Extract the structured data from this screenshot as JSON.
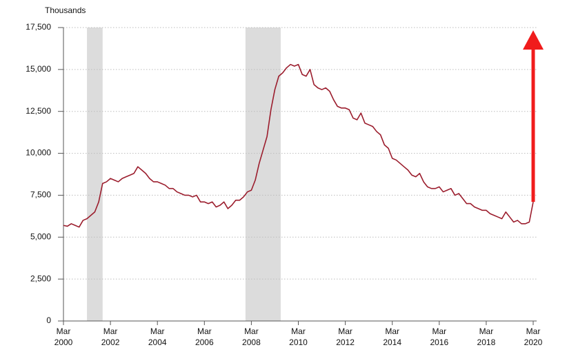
{
  "chart_data": {
    "type": "line",
    "y_label": "Thousands",
    "x": [
      "2000-03",
      "2000-05",
      "2000-07",
      "2000-09",
      "2000-11",
      "2001-01",
      "2001-03",
      "2001-05",
      "2001-07",
      "2001-09",
      "2001-11",
      "2002-01",
      "2002-03",
      "2002-05",
      "2002-07",
      "2002-09",
      "2002-11",
      "2003-01",
      "2003-03",
      "2003-05",
      "2003-07",
      "2003-09",
      "2003-11",
      "2004-01",
      "2004-03",
      "2004-05",
      "2004-07",
      "2004-09",
      "2004-11",
      "2005-01",
      "2005-03",
      "2005-05",
      "2005-07",
      "2005-09",
      "2005-11",
      "2006-01",
      "2006-03",
      "2006-05",
      "2006-07",
      "2006-09",
      "2006-11",
      "2007-01",
      "2007-03",
      "2007-05",
      "2007-07",
      "2007-09",
      "2007-11",
      "2008-01",
      "2008-03",
      "2008-05",
      "2008-07",
      "2008-09",
      "2008-11",
      "2009-01",
      "2009-03",
      "2009-05",
      "2009-07",
      "2009-09",
      "2009-11",
      "2010-01",
      "2010-03",
      "2010-05",
      "2010-07",
      "2010-09",
      "2010-11",
      "2011-01",
      "2011-03",
      "2011-05",
      "2011-07",
      "2011-09",
      "2011-11",
      "2012-01",
      "2012-03",
      "2012-05",
      "2012-07",
      "2012-09",
      "2012-11",
      "2013-01",
      "2013-03",
      "2013-05",
      "2013-07",
      "2013-09",
      "2013-11",
      "2014-01",
      "2014-03",
      "2014-05",
      "2014-07",
      "2014-09",
      "2014-11",
      "2015-01",
      "2015-03",
      "2015-05",
      "2015-07",
      "2015-09",
      "2015-11",
      "2016-01",
      "2016-03",
      "2016-05",
      "2016-07",
      "2016-09",
      "2016-11",
      "2017-01",
      "2017-03",
      "2017-05",
      "2017-07",
      "2017-09",
      "2017-11",
      "2018-01",
      "2018-03",
      "2018-05",
      "2018-07",
      "2018-09",
      "2018-11",
      "2019-01",
      "2019-03",
      "2019-05",
      "2019-07",
      "2019-09",
      "2019-11",
      "2020-01",
      "2020-03"
    ],
    "series": [
      {
        "color": "#9b1c2c",
        "values": [
          5700,
          5650,
          5800,
          5700,
          5600,
          6000,
          6100,
          6300,
          6500,
          7100,
          8200,
          8300,
          8500,
          8400,
          8300,
          8500,
          8600,
          8700,
          8800,
          9200,
          9000,
          8800,
          8500,
          8300,
          8300,
          8200,
          8100,
          7900,
          7900,
          7700,
          7600,
          7500,
          7500,
          7400,
          7500,
          7100,
          7100,
          7000,
          7100,
          6800,
          6900,
          7100,
          6700,
          6900,
          7200,
          7200,
          7400,
          7700,
          7800,
          8400,
          9400,
          10200,
          11000,
          12600,
          13800,
          14600,
          14800,
          15100,
          15300,
          15200,
          15300,
          14700,
          14600,
          15000,
          14100,
          13900,
          13800,
          13900,
          13700,
          13200,
          12800,
          12700,
          12700,
          12600,
          12100,
          12000,
          12400,
          11800,
          11700,
          11600,
          11300,
          11100,
          10500,
          10300,
          9700,
          9600,
          9400,
          9200,
          9000,
          8700,
          8600,
          8800,
          8300,
          8000,
          7900,
          7900,
          8000,
          7700,
          7800,
          7900,
          7500,
          7600,
          7300,
          7000,
          7000,
          6800,
          6700,
          6600,
          6600,
          6400,
          6300,
          6200,
          6100,
          6500,
          6200,
          5900,
          6000,
          5800,
          5800,
          5900,
          7100
        ]
      }
    ],
    "xlim": [
      "2000-03",
      "2020-03"
    ],
    "xticks": [
      {
        "value": "2000-03",
        "label": [
          "Mar",
          "2000"
        ]
      },
      {
        "value": "2002-03",
        "label": [
          "Mar",
          "2002"
        ]
      },
      {
        "value": "2004-03",
        "label": [
          "Mar",
          "2004"
        ]
      },
      {
        "value": "2006-03",
        "label": [
          "Mar",
          "2006"
        ]
      },
      {
        "value": "2008-03",
        "label": [
          "Mar",
          "2008"
        ]
      },
      {
        "value": "2010-03",
        "label": [
          "Mar",
          "2010"
        ]
      },
      {
        "value": "2012-03",
        "label": [
          "Mar",
          "2012"
        ]
      },
      {
        "value": "2014-03",
        "label": [
          "Mar",
          "2014"
        ]
      },
      {
        "value": "2016-03",
        "label": [
          "Mar",
          "2016"
        ]
      },
      {
        "value": "2018-03",
        "label": [
          "Mar",
          "2018"
        ]
      },
      {
        "value": "2020-03",
        "label": [
          "Mar",
          "2020"
        ]
      }
    ],
    "ylim": [
      0,
      17500
    ],
    "yticks": [
      0,
      {
        "value": 2500,
        "label": "2,500"
      },
      {
        "value": 5000,
        "label": "5,000"
      },
      {
        "value": 7500,
        "label": "7,500"
      },
      {
        "value": 10000,
        "label": "10,000"
      },
      {
        "value": 12500,
        "label": "12,500"
      },
      {
        "value": 15000,
        "label": "15,000"
      },
      {
        "value": 17500,
        "label": "17,500"
      }
    ],
    "grid": true,
    "shaded_periods": [
      [
        "2001-03",
        "2001-11"
      ],
      [
        "2007-12",
        "2009-06"
      ]
    ],
    "shade_color": "#dcdcdc",
    "arrow": {
      "x": "2020-03",
      "from": 7100,
      "to": 17500,
      "color": "#f01c1c"
    }
  }
}
